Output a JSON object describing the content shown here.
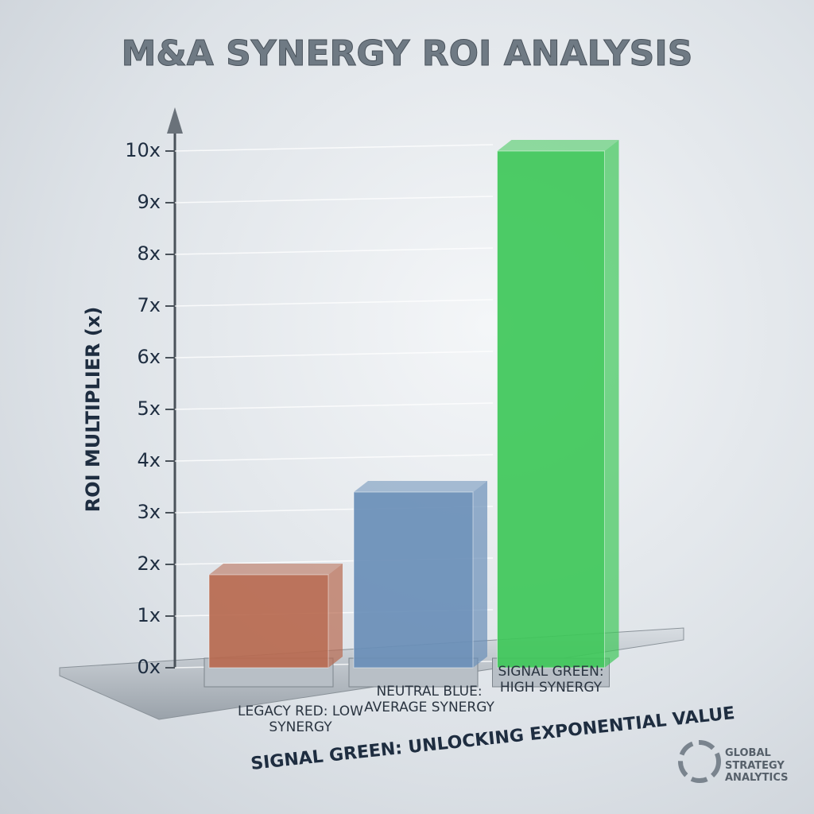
{
  "chart_data": {
    "type": "bar3d",
    "title": "M&A SYNERGY ROI ANALYSIS",
    "y_label": "ROI MULTIPLIER (x)",
    "subtitle": "SIGNAL GREEN: UNLOCKING EXPONENTIAL VALUE",
    "categories": [
      "LEGACY RED: LOW SYNERGY",
      "NEUTRAL BLUE: AVERAGE SYNERGY",
      "SIGNAL GREEN: HIGH SYNERGY"
    ],
    "values": [
      1.8,
      3.4,
      10
    ],
    "colors": [
      "#b86a50",
      "#6a8fb8",
      "#3fc85a"
    ],
    "ylim": [
      0,
      11
    ],
    "yticks": [
      {
        "value": 0,
        "label": "0x"
      },
      {
        "value": 1,
        "label": "1x"
      },
      {
        "value": 2,
        "label": "2x"
      },
      {
        "value": 3,
        "label": "3x"
      },
      {
        "value": 4,
        "label": "4x"
      },
      {
        "value": 5,
        "label": "5x"
      },
      {
        "value": 6,
        "label": "6x"
      },
      {
        "value": 7,
        "label": "7x"
      },
      {
        "value": 8,
        "label": "8x"
      },
      {
        "value": 9,
        "label": "9x"
      },
      {
        "value": 10,
        "label": "10x"
      }
    ],
    "grid": true
  },
  "logo": "GLOBAL STRATEGY ANALYTICS"
}
